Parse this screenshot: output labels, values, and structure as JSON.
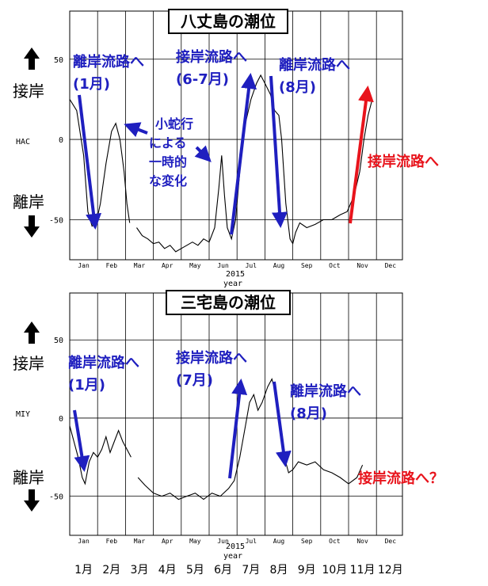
{
  "colors": {
    "blue": "#1f1fbf",
    "red": "#e8141c",
    "line": "#000000"
  },
  "chart_data": [
    {
      "type": "line",
      "title": "八丈島の潮位",
      "station": "HAC",
      "xlabel_year": "2015",
      "xlabel": "year",
      "xlim": [
        0,
        12
      ],
      "ylim": [
        -75,
        80
      ],
      "yticks": [
        50,
        0,
        -50
      ],
      "ytick_labels": [
        "50",
        "0",
        "-50"
      ],
      "month_ticks": [
        "Jan",
        "Feb",
        "Mar",
        "Apr",
        "May",
        "Jun",
        "Jul",
        "Aug",
        "Sep",
        "Oct",
        "Nov",
        "Dec"
      ],
      "side_labels": {
        "up": "接岸",
        "down": "離岸"
      },
      "segments": [
        [
          [
            0.0,
            25
          ],
          [
            0.25,
            18
          ],
          [
            0.5,
            -10
          ],
          [
            0.65,
            -45
          ],
          [
            0.8,
            -54
          ],
          [
            0.95,
            -52
          ],
          [
            1.1,
            -40
          ],
          [
            1.3,
            -15
          ],
          [
            1.5,
            5
          ],
          [
            1.65,
            10
          ],
          [
            1.8,
            0
          ],
          [
            1.95,
            -20
          ],
          [
            2.05,
            -40
          ],
          [
            2.15,
            -52
          ]
        ],
        [
          [
            2.4,
            -55
          ],
          [
            2.6,
            -60
          ],
          [
            2.8,
            -62
          ],
          [
            3.0,
            -65
          ],
          [
            3.2,
            -64
          ],
          [
            3.4,
            -68
          ],
          [
            3.6,
            -66
          ],
          [
            3.8,
            -70
          ],
          [
            4.0,
            -68
          ],
          [
            4.2,
            -66
          ],
          [
            4.4,
            -64
          ],
          [
            4.6,
            -66
          ],
          [
            4.8,
            -62
          ],
          [
            5.0,
            -64
          ],
          [
            5.2,
            -55
          ],
          [
            5.35,
            -30
          ],
          [
            5.45,
            -10
          ],
          [
            5.55,
            -35
          ],
          [
            5.65,
            -55
          ],
          [
            5.8,
            -62
          ],
          [
            5.95,
            -50
          ],
          [
            6.1,
            -20
          ],
          [
            6.3,
            10
          ],
          [
            6.5,
            25
          ],
          [
            6.7,
            35
          ],
          [
            6.85,
            40
          ],
          [
            7.0,
            35
          ],
          [
            7.2,
            28
          ],
          [
            7.35,
            18
          ],
          [
            7.5,
            15
          ],
          [
            7.6,
            0
          ],
          [
            7.75,
            -40
          ],
          [
            7.9,
            -62
          ],
          [
            8.0,
            -65
          ],
          [
            8.1,
            -58
          ],
          [
            8.25,
            -52
          ],
          [
            8.5,
            -55
          ],
          [
            8.8,
            -53
          ],
          [
            9.1,
            -50
          ],
          [
            9.4,
            -50
          ],
          [
            9.7,
            -47
          ],
          [
            9.95,
            -45
          ],
          [
            10.2,
            -35
          ],
          [
            10.4,
            -20
          ],
          [
            10.55,
            0
          ],
          [
            10.7,
            15
          ],
          [
            10.85,
            25
          ]
        ]
      ],
      "annotations": [
        {
          "text_lines": [
            "離岸流路へ",
            "(1月)"
          ],
          "color": "blue"
        },
        {
          "text_lines": [
            "接岸流路へ",
            "(6-7月)"
          ],
          "color": "blue"
        },
        {
          "text_lines": [
            "離岸流路へ",
            "(8月)"
          ],
          "color": "blue"
        },
        {
          "text_lines": [
            "小蛇行",
            "による",
            "一時的",
            "な変化"
          ],
          "color": "blue"
        },
        {
          "text_lines": [
            "接岸流路へ"
          ],
          "color": "red"
        }
      ]
    },
    {
      "type": "line",
      "title": "三宅島の潮位",
      "station": "MIY",
      "xlabel_year": "2015",
      "xlabel": "year",
      "xlim": [
        0,
        12
      ],
      "ylim": [
        -75,
        80
      ],
      "yticks": [
        50,
        0,
        -50
      ],
      "ytick_labels": [
        "50",
        "0",
        "-50"
      ],
      "month_ticks": [
        "Jan",
        "Feb",
        "Mar",
        "Apr",
        "May",
        "Jun",
        "Jul",
        "Aug",
        "Sep",
        "Oct",
        "Nov",
        "Dec"
      ],
      "side_labels": {
        "up": "接岸",
        "down": "離岸"
      },
      "segments": [
        [
          [
            0.0,
            -5
          ],
          [
            0.15,
            -15
          ],
          [
            0.3,
            -25
          ],
          [
            0.45,
            -38
          ],
          [
            0.55,
            -42
          ],
          [
            0.7,
            -28
          ],
          [
            0.85,
            -22
          ],
          [
            1.0,
            -25
          ],
          [
            1.15,
            -20
          ],
          [
            1.3,
            -12
          ],
          [
            1.45,
            -22
          ],
          [
            1.6,
            -15
          ],
          [
            1.75,
            -8
          ],
          [
            1.9,
            -15
          ],
          [
            2.05,
            -20
          ],
          [
            2.2,
            -25
          ]
        ],
        [
          [
            2.45,
            -38
          ],
          [
            2.7,
            -43
          ],
          [
            3.0,
            -48
          ],
          [
            3.3,
            -50
          ],
          [
            3.6,
            -48
          ],
          [
            3.9,
            -52
          ],
          [
            4.2,
            -50
          ],
          [
            4.5,
            -48
          ],
          [
            4.8,
            -52
          ],
          [
            5.1,
            -48
          ],
          [
            5.4,
            -50
          ],
          [
            5.7,
            -45
          ],
          [
            5.9,
            -40
          ],
          [
            6.1,
            -25
          ],
          [
            6.3,
            -5
          ],
          [
            6.45,
            10
          ],
          [
            6.6,
            15
          ],
          [
            6.75,
            5
          ],
          [
            6.9,
            10
          ],
          [
            7.1,
            20
          ],
          [
            7.25,
            25
          ],
          [
            7.4,
            15
          ],
          [
            7.55,
            -5
          ],
          [
            7.7,
            -25
          ],
          [
            7.85,
            -35
          ],
          [
            8.0,
            -33
          ],
          [
            8.2,
            -28
          ],
          [
            8.5,
            -30
          ],
          [
            8.8,
            -28
          ],
          [
            9.1,
            -33
          ],
          [
            9.4,
            -35
          ],
          [
            9.7,
            -38
          ],
          [
            10.0,
            -42
          ],
          [
            10.3,
            -38
          ],
          [
            10.5,
            -30
          ]
        ]
      ],
      "annotations": [
        {
          "text_lines": [
            "離岸流路へ",
            "(1月)"
          ],
          "color": "blue"
        },
        {
          "text_lines": [
            "接岸流路へ",
            "(7月)"
          ],
          "color": "blue"
        },
        {
          "text_lines": [
            "離岸流路へ",
            "(8月)"
          ],
          "color": "blue"
        },
        {
          "text_lines": [
            "接岸流路へ？"
          ],
          "color": "red"
        }
      ]
    }
  ],
  "bottom_month_labels": [
    "1月",
    "2月",
    "3月",
    "4月",
    "5月",
    "6月",
    "7月",
    "8月",
    "9月",
    "10月",
    "11月",
    "12月"
  ]
}
